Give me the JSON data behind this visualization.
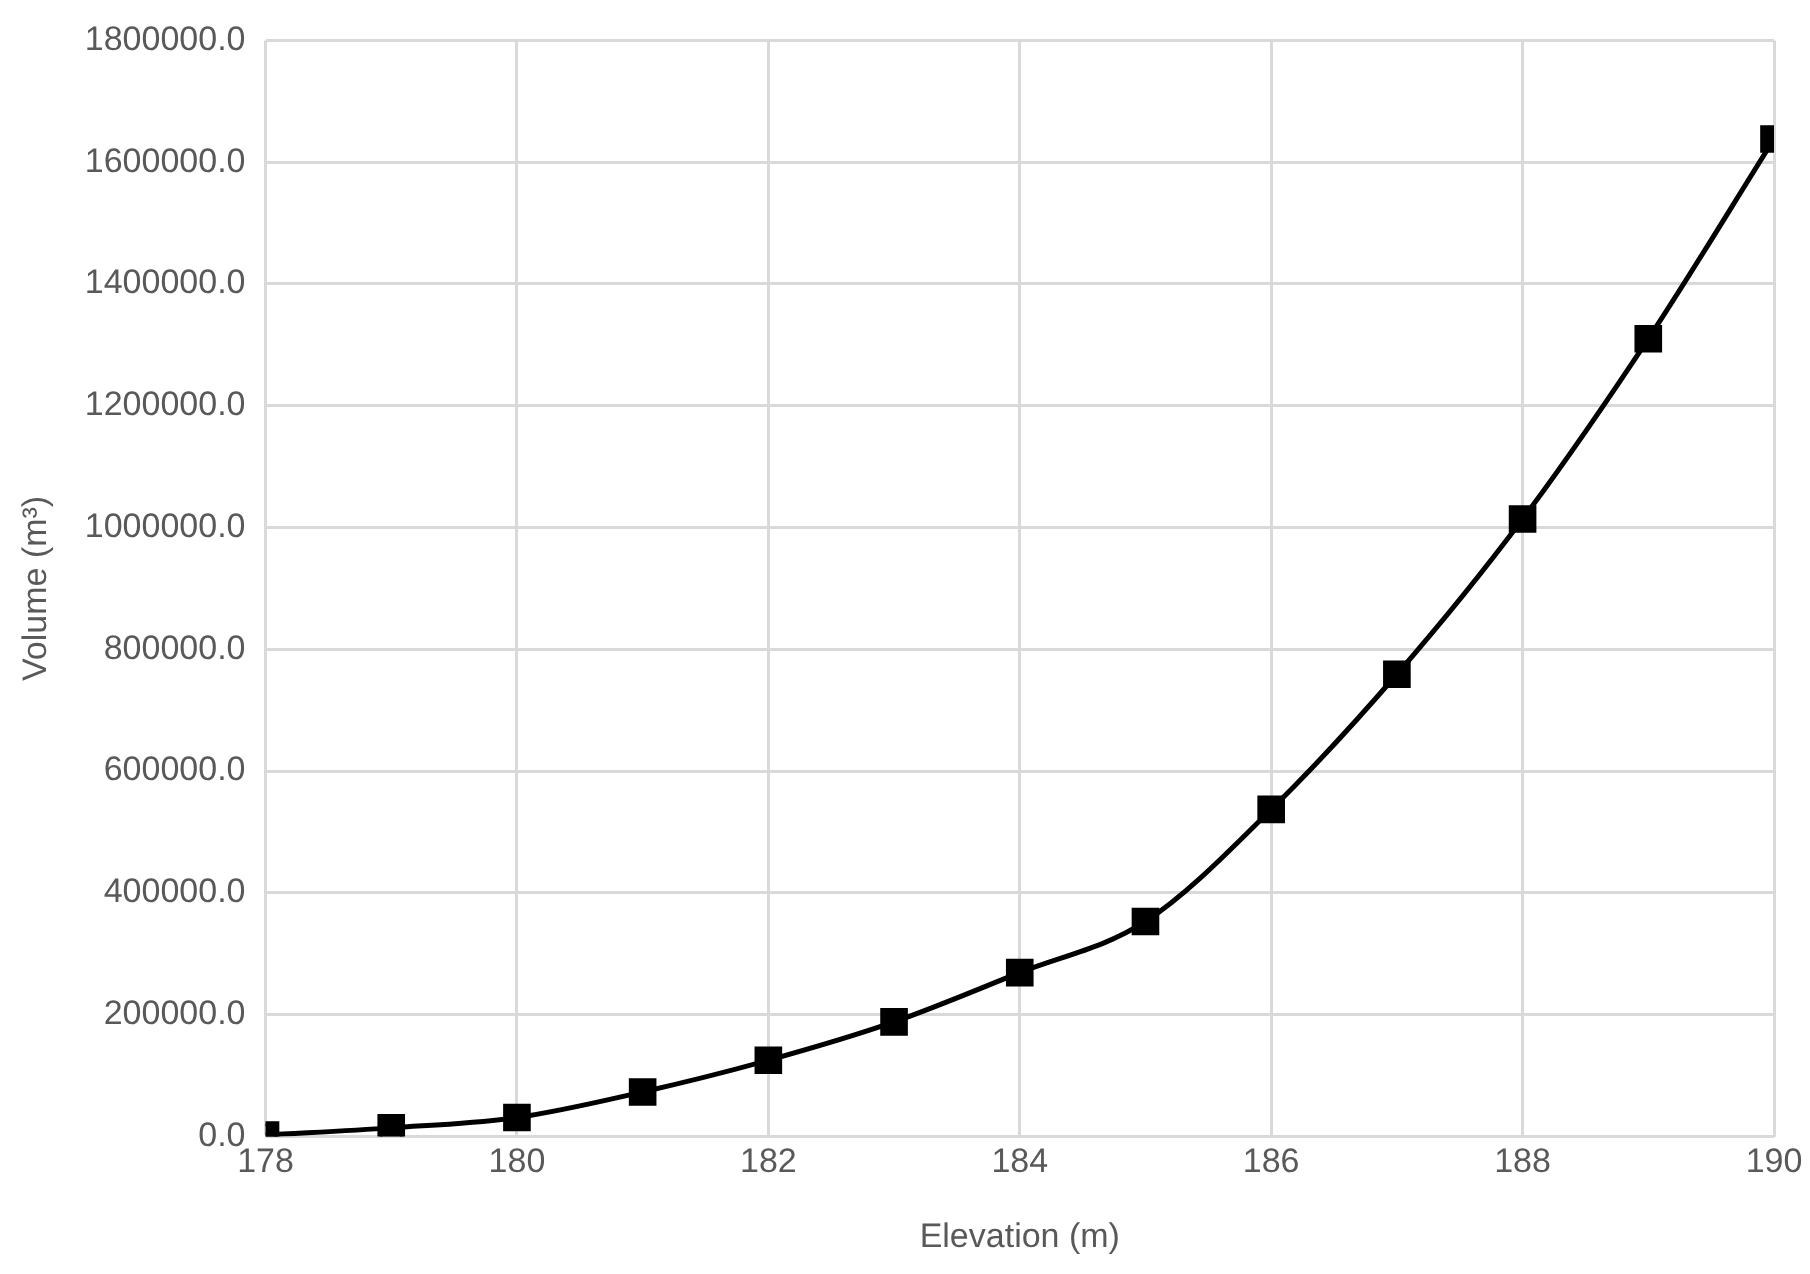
{
  "chart_data": {
    "type": "line",
    "xlabel": "Elevation (m)",
    "ylabel": "Volume (m³)",
    "x": [
      178,
      179,
      180,
      181,
      182,
      183,
      184,
      185,
      186,
      187,
      188,
      189,
      190
    ],
    "series": [
      {
        "color": "#000000",
        "values": [
          2000,
          14000,
          31000,
          73000,
          125000,
          188000,
          269000,
          353000,
          537000,
          759000,
          1014000,
          1310000,
          1638000
        ]
      }
    ],
    "xlim": [
      178,
      190
    ],
    "xticks": [
      178,
      180,
      182,
      184,
      186,
      188,
      190
    ],
    "ylim": [
      0,
      1800000
    ],
    "yticks": [
      {
        "value": 0,
        "label": "0.0"
      },
      {
        "value": 200000,
        "label": "200000.0"
      },
      {
        "value": 400000,
        "label": "400000.0"
      },
      {
        "value": 600000,
        "label": "600000.0"
      },
      {
        "value": 800000,
        "label": "800000.0"
      },
      {
        "value": 1000000,
        "label": "1000000.0"
      },
      {
        "value": 1200000,
        "label": "1200000.0"
      },
      {
        "value": 1400000,
        "label": "1400000.0"
      },
      {
        "value": 1600000,
        "label": "1600000.0"
      },
      {
        "value": 1800000,
        "label": "1800000.0"
      }
    ],
    "grid": true,
    "legend": false,
    "marker": "square",
    "line_style": "solid"
  }
}
